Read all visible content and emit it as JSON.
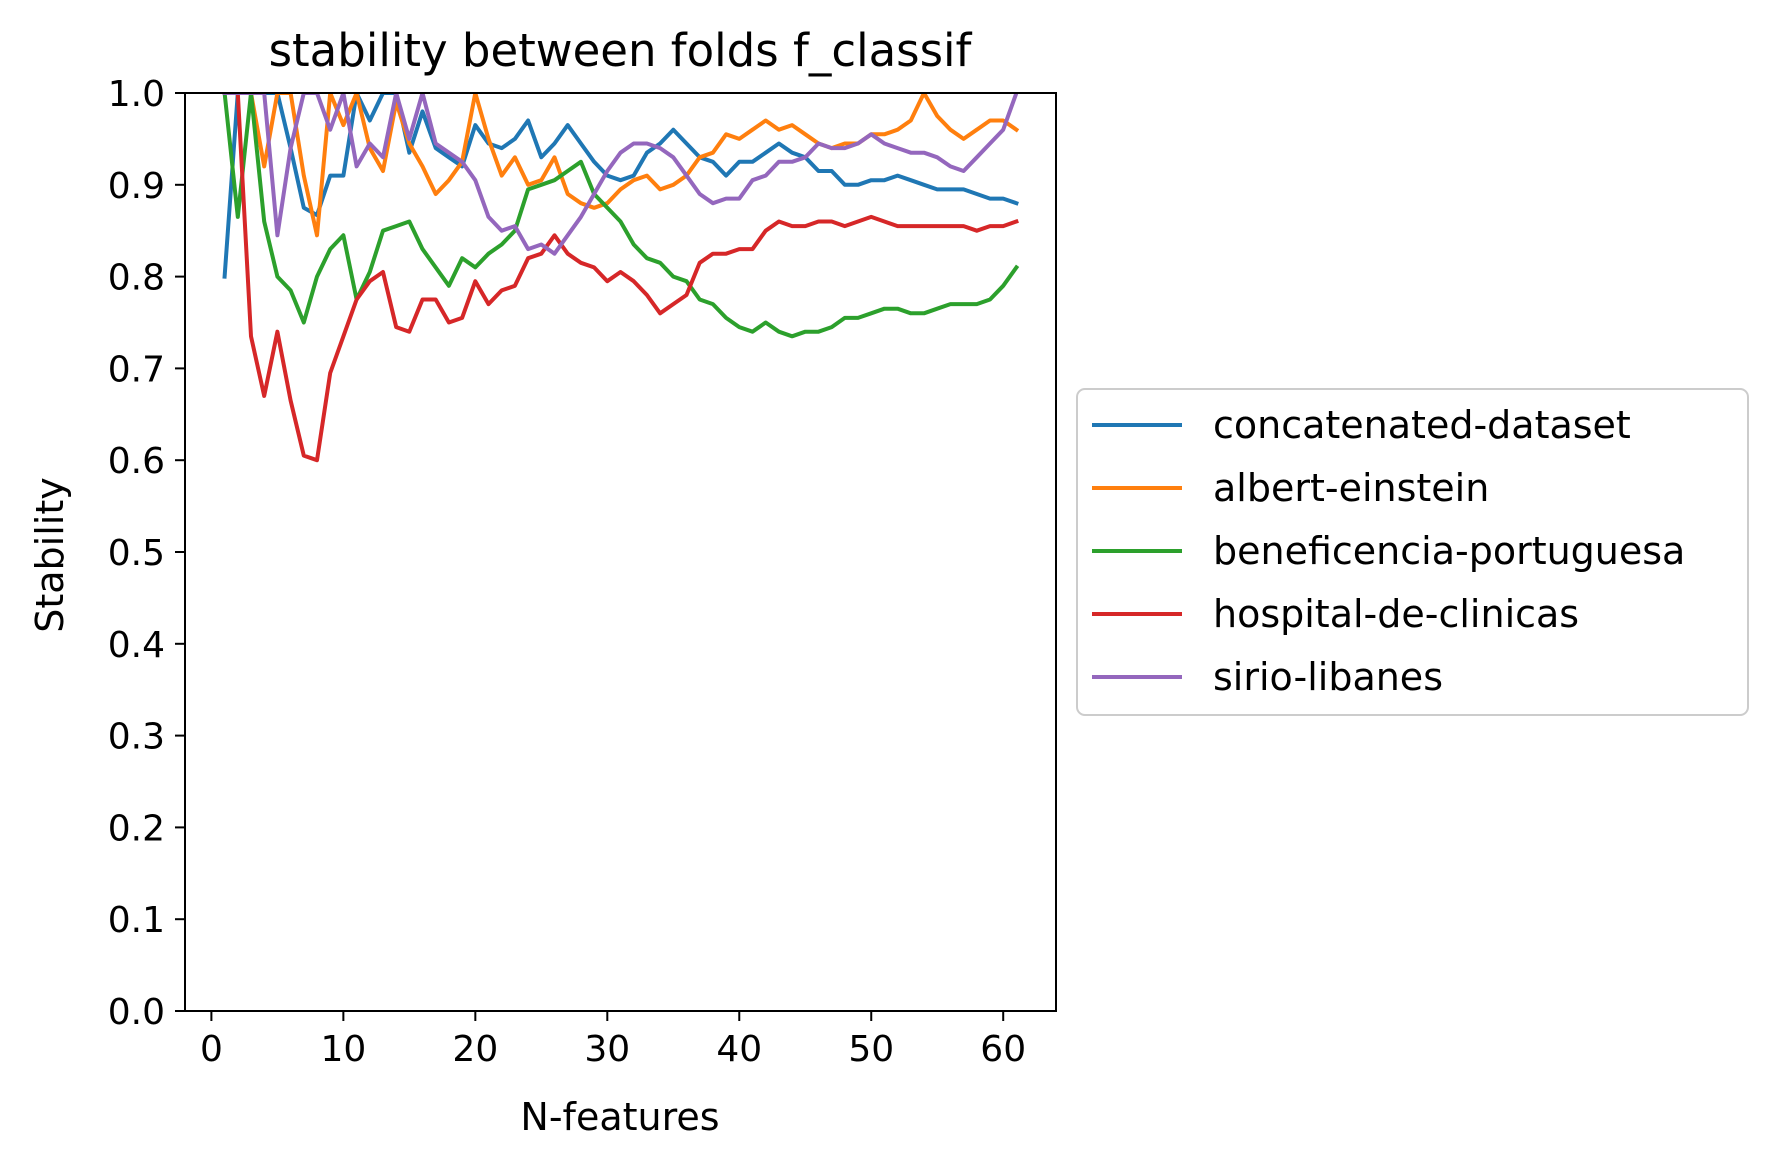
{
  "chart_data": {
    "type": "line",
    "title": "stability between folds f_classif",
    "xlabel": "N-features",
    "ylabel": "Stability",
    "xlim": [
      -2.0,
      64.0
    ],
    "ylim": [
      0.0,
      1.0
    ],
    "xticks": [
      0,
      10,
      20,
      30,
      40,
      50,
      60
    ],
    "xtick_labels": [
      "0",
      "10",
      "20",
      "30",
      "40",
      "50",
      "60"
    ],
    "yticks": [
      0.0,
      0.1,
      0.2,
      0.3,
      0.4,
      0.5,
      0.6,
      0.7,
      0.8,
      0.9,
      1.0
    ],
    "ytick_labels": [
      "0.0",
      "0.1",
      "0.2",
      "0.3",
      "0.4",
      "0.5",
      "0.6",
      "0.7",
      "0.8",
      "0.9",
      "1.0"
    ],
    "grid": false,
    "legend_position": "outside-right",
    "x": [
      1,
      2,
      3,
      4,
      5,
      6,
      7,
      8,
      9,
      10,
      11,
      12,
      13,
      14,
      15,
      16,
      17,
      18,
      19,
      20,
      21,
      22,
      23,
      24,
      25,
      26,
      27,
      28,
      29,
      30,
      31,
      32,
      33,
      34,
      35,
      36,
      37,
      38,
      39,
      40,
      41,
      42,
      43,
      44,
      45,
      46,
      47,
      48,
      49,
      50,
      51,
      52,
      53,
      54,
      55,
      56,
      57,
      58,
      59,
      60,
      61
    ],
    "series": [
      {
        "name": "concatenated-dataset",
        "color": "#1f77b4",
        "values": [
          0.8,
          1.0,
          1.0,
          1.0,
          1.0,
          0.94,
          0.875,
          0.867,
          0.91,
          0.91,
          1.0,
          0.97,
          1.0,
          1.0,
          0.935,
          0.98,
          0.94,
          0.93,
          0.92,
          0.965,
          0.945,
          0.94,
          0.95,
          0.97,
          0.93,
          0.945,
          0.965,
          0.945,
          0.925,
          0.91,
          0.905,
          0.91,
          0.935,
          0.945,
          0.96,
          0.945,
          0.93,
          0.925,
          0.91,
          0.925,
          0.925,
          0.935,
          0.945,
          0.935,
          0.93,
          0.915,
          0.915,
          0.9,
          0.9,
          0.905,
          0.905,
          0.91,
          0.905,
          0.9,
          0.895,
          0.895,
          0.895,
          0.89,
          0.885,
          0.885,
          0.88
        ]
      },
      {
        "name": "albert-einstein",
        "color": "#ff7f0e",
        "values": [
          1.0,
          1.0,
          1.0,
          0.92,
          1.0,
          1.0,
          0.91,
          0.845,
          1.0,
          0.965,
          1.0,
          0.94,
          0.915,
          0.99,
          0.945,
          0.92,
          0.89,
          0.905,
          0.925,
          1.0,
          0.95,
          0.91,
          0.93,
          0.9,
          0.905,
          0.93,
          0.89,
          0.88,
          0.875,
          0.88,
          0.895,
          0.905,
          0.91,
          0.895,
          0.9,
          0.91,
          0.93,
          0.935,
          0.955,
          0.95,
          0.96,
          0.97,
          0.96,
          0.965,
          0.955,
          0.945,
          0.94,
          0.945,
          0.945,
          0.955,
          0.955,
          0.96,
          0.97,
          1.0,
          0.975,
          0.96,
          0.95,
          0.96,
          0.97,
          0.97,
          0.96
        ]
      },
      {
        "name": "beneficencia-portuguesa",
        "color": "#2ca02c",
        "values": [
          1.0,
          0.865,
          1.0,
          0.86,
          0.8,
          0.785,
          0.75,
          0.8,
          0.83,
          0.845,
          0.775,
          0.805,
          0.85,
          0.855,
          0.86,
          0.83,
          0.81,
          0.79,
          0.82,
          0.81,
          0.825,
          0.835,
          0.85,
          0.895,
          0.9,
          0.905,
          0.915,
          0.925,
          0.89,
          0.875,
          0.86,
          0.835,
          0.82,
          0.815,
          0.8,
          0.795,
          0.775,
          0.77,
          0.755,
          0.745,
          0.74,
          0.75,
          0.74,
          0.735,
          0.74,
          0.74,
          0.745,
          0.755,
          0.755,
          0.76,
          0.765,
          0.765,
          0.76,
          0.76,
          0.765,
          0.77,
          0.77,
          0.77,
          0.775,
          0.79,
          0.81
        ]
      },
      {
        "name": "hospital-de-clinicas",
        "color": "#d62728",
        "values": [
          1.0,
          1.0,
          0.735,
          0.67,
          0.74,
          0.665,
          0.605,
          0.6,
          0.695,
          0.735,
          0.775,
          0.795,
          0.805,
          0.745,
          0.74,
          0.775,
          0.775,
          0.75,
          0.755,
          0.795,
          0.77,
          0.785,
          0.79,
          0.82,
          0.825,
          0.845,
          0.825,
          0.815,
          0.81,
          0.795,
          0.805,
          0.795,
          0.78,
          0.76,
          0.77,
          0.78,
          0.815,
          0.825,
          0.825,
          0.83,
          0.83,
          0.85,
          0.86,
          0.855,
          0.855,
          0.86,
          0.86,
          0.855,
          0.86,
          0.865,
          0.86,
          0.855,
          0.855,
          0.855,
          0.855,
          0.855,
          0.855,
          0.85,
          0.855,
          0.855,
          0.86
        ]
      },
      {
        "name": "sirio-libanes",
        "color": "#9467bd",
        "values": [
          1.0,
          1.0,
          1.0,
          1.0,
          0.845,
          0.94,
          1.0,
          1.0,
          0.96,
          1.0,
          0.92,
          0.945,
          0.93,
          1.0,
          0.95,
          1.0,
          0.945,
          0.935,
          0.925,
          0.905,
          0.865,
          0.85,
          0.855,
          0.83,
          0.835,
          0.825,
          0.845,
          0.865,
          0.89,
          0.915,
          0.935,
          0.945,
          0.945,
          0.94,
          0.93,
          0.91,
          0.89,
          0.88,
          0.885,
          0.885,
          0.905,
          0.91,
          0.925,
          0.925,
          0.93,
          0.945,
          0.94,
          0.94,
          0.945,
          0.955,
          0.945,
          0.94,
          0.935,
          0.935,
          0.93,
          0.92,
          0.915,
          0.93,
          0.945,
          0.96,
          1.0
        ]
      }
    ]
  }
}
